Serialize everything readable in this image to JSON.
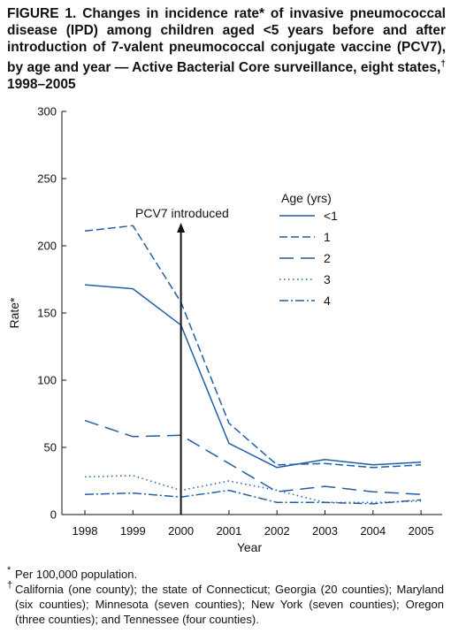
{
  "title": {
    "text": "FIGURE 1. Changes in incidence rate* of invasive pneumococcal disease (IPD) among children aged <5 years before and after introduction of 7-valent pneumococcal conjugate vaccine (PCV7), by age and year — Active Bacterial Core surveillance, eight states,",
    "dagger": "†",
    "years": " 1998–2005"
  },
  "chart_data": {
    "type": "line",
    "xlabel": "Year",
    "ylabel": "Rate*",
    "ylim": [
      0,
      300
    ],
    "yticks": [
      0,
      50,
      100,
      150,
      200,
      250,
      300
    ],
    "x": [
      "1998",
      "1999",
      "2000",
      "2001",
      "2002",
      "2003",
      "2004",
      "2005"
    ],
    "legend_title": "Age (yrs)",
    "legend_position": "upper-right",
    "grid": false,
    "annotation": {
      "text": "PCV7 introduced",
      "x": "2000"
    },
    "series": [
      {
        "name": "<1",
        "style": "solid",
        "values": [
          171,
          168,
          141,
          53,
          35,
          41,
          37,
          39
        ]
      },
      {
        "name": "1",
        "style": "dashed",
        "values": [
          211,
          215,
          158,
          68,
          37,
          38,
          35,
          37
        ]
      },
      {
        "name": "2",
        "style": "long-dashed",
        "values": [
          70,
          58,
          59,
          38,
          17,
          21,
          17,
          15
        ]
      },
      {
        "name": "3",
        "style": "dotted",
        "values": [
          28,
          29,
          18,
          25,
          18,
          9,
          9,
          10
        ]
      },
      {
        "name": "4",
        "style": "dash-dot",
        "values": [
          15,
          16,
          13,
          18,
          9,
          9,
          8,
          11
        ]
      }
    ],
    "line_color": "#1f5fa6"
  },
  "footnotes": [
    {
      "mark": "*",
      "text": "Per 100,000 population."
    },
    {
      "mark": "†",
      "text": "California (one county); the state of Connecticut; Georgia (20 counties); Maryland (six counties); Minnesota (seven counties); New York (seven counties); Oregon (three counties); and Tennessee (four counties)."
    }
  ]
}
